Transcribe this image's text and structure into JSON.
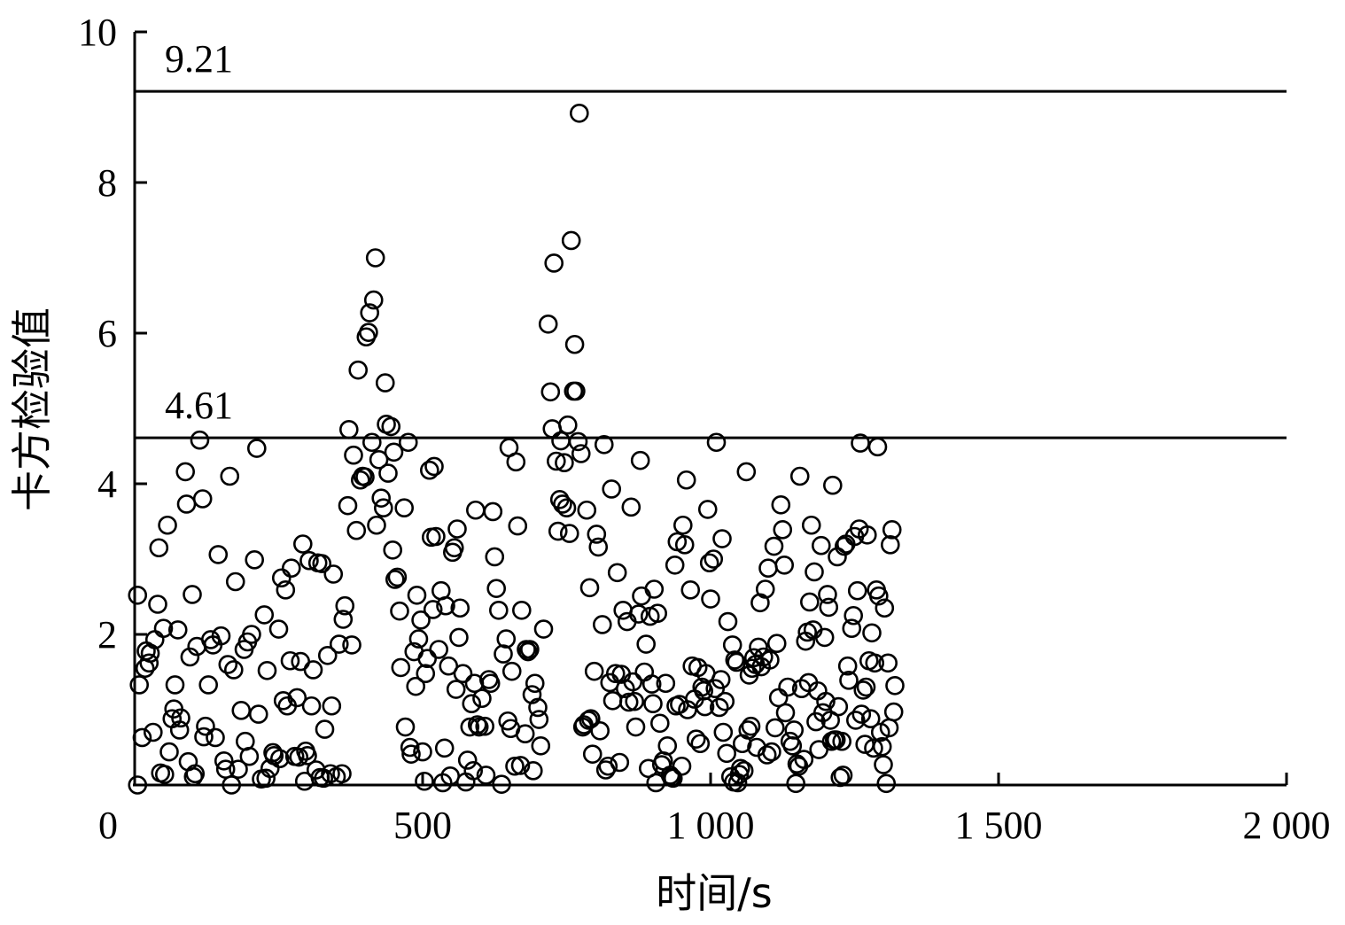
{
  "chart_data": {
    "type": "scatter",
    "xlabel": "时间/s",
    "ylabel": "卡方检验值",
    "xlim": [
      0,
      2000
    ],
    "ylim": [
      0,
      10
    ],
    "xticks": [
      {
        "value": 0,
        "label": "0"
      },
      {
        "value": 500,
        "label": "500"
      },
      {
        "value": 1000,
        "label": "1 000"
      },
      {
        "value": 1500,
        "label": "1 500"
      },
      {
        "value": 2000,
        "label": "2 000"
      }
    ],
    "yticks": [
      {
        "value": 2,
        "label": "2"
      },
      {
        "value": 4,
        "label": "4"
      },
      {
        "value": 6,
        "label": "6"
      },
      {
        "value": 8,
        "label": "8"
      },
      {
        "value": 10,
        "label": "10"
      }
    ],
    "reference_lines": [
      {
        "value": 9.21,
        "label": "9.21"
      },
      {
        "value": 4.61,
        "label": "4.61"
      }
    ],
    "marker": "open-circle",
    "grid": false,
    "points": [
      [
        5,
        2.52
      ],
      [
        5,
        0
      ],
      [
        8,
        1.33
      ],
      [
        13,
        0.63
      ],
      [
        18,
        1.55
      ],
      [
        20,
        1.78
      ],
      [
        25,
        1.62
      ],
      [
        27,
        1.75
      ],
      [
        32,
        0.7
      ],
      [
        35,
        1.93
      ],
      [
        40,
        2.4
      ],
      [
        42,
        3.15
      ],
      [
        45,
        0.16
      ],
      [
        50,
        2.08
      ],
      [
        52,
        0.14
      ],
      [
        57,
        3.45
      ],
      [
        60,
        0.44
      ],
      [
        65,
        0.88
      ],
      [
        68,
        1.01
      ],
      [
        70,
        1.33
      ],
      [
        75,
        2.06
      ],
      [
        78,
        0.73
      ],
      [
        80,
        0.89
      ],
      [
        88,
        4.16
      ],
      [
        90,
        3.73
      ],
      [
        93,
        0.31
      ],
      [
        96,
        1.7
      ],
      [
        100,
        2.53
      ],
      [
        102,
        0.11
      ],
      [
        105,
        0.15
      ],
      [
        108,
        1.84
      ],
      [
        113,
        4.58
      ],
      [
        118,
        3.8
      ],
      [
        120,
        0.64
      ],
      [
        123,
        0.78
      ],
      [
        128,
        1.33
      ],
      [
        132,
        1.93
      ],
      [
        136,
        1.86
      ],
      [
        140,
        0.63
      ],
      [
        145,
        3.06
      ],
      [
        150,
        1.98
      ],
      [
        155,
        0.32
      ],
      [
        158,
        0.21
      ],
      [
        162,
        1.6
      ],
      [
        165,
        4.1
      ],
      [
        168,
        0
      ],
      [
        172,
        1.53
      ],
      [
        175,
        2.7
      ],
      [
        180,
        0.21
      ],
      [
        185,
        0.99
      ],
      [
        190,
        1.8
      ],
      [
        192,
        0.58
      ],
      [
        196,
        1.9
      ],
      [
        199,
        0.38
      ],
      [
        203,
        2.0
      ],
      [
        208,
        2.99
      ],
      [
        212,
        4.47
      ],
      [
        215,
        0.94
      ],
      [
        220,
        0.08
      ],
      [
        225,
        2.26
      ],
      [
        228,
        0.09
      ],
      [
        230,
        1.52
      ],
      [
        235,
        0.22
      ],
      [
        240,
        0.43
      ],
      [
        242,
        0.39
      ],
      [
        250,
        2.07
      ],
      [
        252,
        0.35
      ],
      [
        255,
        2.75
      ],
      [
        258,
        1.12
      ],
      [
        262,
        2.59
      ],
      [
        265,
        1.05
      ],
      [
        270,
        1.65
      ],
      [
        272,
        2.88
      ],
      [
        278,
        0.38
      ],
      [
        282,
        1.16
      ],
      [
        285,
        0.37
      ],
      [
        288,
        1.64
      ],
      [
        292,
        3.2
      ],
      [
        295,
        0.05
      ],
      [
        297,
        0.45
      ],
      [
        300,
        0.39
      ],
      [
        303,
        2.98
      ],
      [
        307,
        1.05
      ],
      [
        310,
        1.53
      ],
      [
        315,
        0.2
      ],
      [
        318,
        2.95
      ],
      [
        322,
        0.1
      ],
      [
        325,
        2.94
      ],
      [
        328,
        0.09
      ],
      [
        330,
        0.74
      ],
      [
        335,
        1.72
      ],
      [
        340,
        0.15
      ],
      [
        342,
        1.05
      ],
      [
        345,
        2.8
      ],
      [
        350,
        0.11
      ],
      [
        355,
        1.87
      ],
      [
        360,
        0.15
      ],
      [
        362,
        2.2
      ],
      [
        365,
        2.38
      ],
      [
        370,
        3.71
      ],
      [
        372,
        4.72
      ],
      [
        377,
        1.86
      ],
      [
        380,
        4.38
      ],
      [
        385,
        3.38
      ],
      [
        388,
        5.51
      ],
      [
        392,
        4.05
      ],
      [
        396,
        4.1
      ],
      [
        400,
        4.09
      ],
      [
        402,
        5.95
      ],
      [
        406,
        6.01
      ],
      [
        408,
        6.27
      ],
      [
        412,
        4.55
      ],
      [
        415,
        6.44
      ],
      [
        418,
        7.0
      ],
      [
        420,
        3.45
      ],
      [
        424,
        4.32
      ],
      [
        428,
        3.81
      ],
      [
        432,
        3.68
      ],
      [
        435,
        5.34
      ],
      [
        437,
        4.79
      ],
      [
        440,
        4.14
      ],
      [
        445,
        4.76
      ],
      [
        448,
        3.12
      ],
      [
        450,
        4.42
      ],
      [
        452,
        2.73
      ],
      [
        456,
        2.76
      ],
      [
        460,
        2.31
      ],
      [
        462,
        1.56
      ],
      [
        468,
        3.68
      ],
      [
        470,
        0.77
      ],
      [
        475,
        4.55
      ],
      [
        478,
        0.5
      ],
      [
        480,
        0.41
      ],
      [
        485,
        1.77
      ],
      [
        488,
        1.31
      ],
      [
        490,
        2.52
      ],
      [
        493,
        1.94
      ],
      [
        497,
        2.19
      ],
      [
        500,
        0.44
      ],
      [
        503,
        0.05
      ],
      [
        505,
        1.48
      ],
      [
        508,
        1.68
      ],
      [
        512,
        4.18
      ],
      [
        515,
        3.29
      ],
      [
        518,
        2.33
      ],
      [
        520,
        4.23
      ],
      [
        523,
        3.3
      ],
      [
        528,
        1.8
      ],
      [
        532,
        2.58
      ],
      [
        535,
        0.03
      ],
      [
        538,
        0.49
      ],
      [
        540,
        2.38
      ],
      [
        545,
        1.58
      ],
      [
        548,
        0.12
      ],
      [
        552,
        3.09
      ],
      [
        555,
        3.15
      ],
      [
        558,
        1.27
      ],
      [
        560,
        3.4
      ],
      [
        563,
        1.96
      ],
      [
        565,
        2.35
      ],
      [
        570,
        1.48
      ],
      [
        575,
        0.04
      ],
      [
        578,
        0.33
      ],
      [
        582,
        0.77
      ],
      [
        585,
        1.08
      ],
      [
        588,
        0.19
      ],
      [
        590,
        1.35
      ],
      [
        592,
        3.65
      ],
      [
        595,
        0.8
      ],
      [
        598,
        0.77
      ],
      [
        603,
        1.15
      ],
      [
        608,
        0.78
      ],
      [
        610,
        0.13
      ],
      [
        615,
        1.4
      ],
      [
        618,
        1.35
      ],
      [
        622,
        3.63
      ],
      [
        625,
        3.03
      ],
      [
        628,
        2.61
      ],
      [
        632,
        2.32
      ],
      [
        637,
        0.01
      ],
      [
        640,
        1.74
      ],
      [
        645,
        1.94
      ],
      [
        648,
        0.85
      ],
      [
        650,
        4.48
      ],
      [
        653,
        0.75
      ],
      [
        655,
        1.51
      ],
      [
        660,
        0.25
      ],
      [
        662,
        4.29
      ],
      [
        665,
        3.44
      ],
      [
        670,
        0.26
      ],
      [
        672,
        2.32
      ],
      [
        678,
        0.68
      ],
      [
        680,
        1.8
      ],
      [
        683,
        1.77
      ],
      [
        686,
        1.8
      ],
      [
        690,
        1.2
      ],
      [
        692,
        0.19
      ],
      [
        695,
        1.35
      ],
      [
        700,
        1.03
      ],
      [
        702,
        0.87
      ],
      [
        705,
        0.52
      ],
      [
        710,
        2.07
      ],
      [
        718,
        6.12
      ],
      [
        722,
        5.22
      ],
      [
        725,
        4.73
      ],
      [
        728,
        6.93
      ],
      [
        732,
        4.3
      ],
      [
        735,
        3.37
      ],
      [
        738,
        3.79
      ],
      [
        740,
        4.57
      ],
      [
        743,
        3.73
      ],
      [
        746,
        4.28
      ],
      [
        750,
        3.68
      ],
      [
        752,
        4.78
      ],
      [
        755,
        3.34
      ],
      [
        758,
        7.23
      ],
      [
        762,
        5.23
      ],
      [
        764,
        5.85
      ],
      [
        766,
        5.23
      ],
      [
        770,
        4.56
      ],
      [
        772,
        8.92
      ],
      [
        775,
        4.4
      ],
      [
        778,
        0.77
      ],
      [
        780,
        0.8
      ],
      [
        785,
        3.65
      ],
      [
        788,
        0.86
      ],
      [
        790,
        2.62
      ],
      [
        792,
        0.88
      ],
      [
        795,
        0.41
      ],
      [
        798,
        1.51
      ],
      [
        802,
        3.33
      ],
      [
        805,
        3.16
      ],
      [
        808,
        0.72
      ],
      [
        812,
        2.13
      ],
      [
        815,
        4.52
      ],
      [
        818,
        0.2
      ],
      [
        822,
        0.25
      ],
      [
        825,
        1.36
      ],
      [
        828,
        3.93
      ],
      [
        830,
        1.12
      ],
      [
        835,
        1.48
      ],
      [
        838,
        2.82
      ],
      [
        842,
        0.3
      ],
      [
        845,
        1.47
      ],
      [
        848,
        2.32
      ],
      [
        852,
        1.28
      ],
      [
        855,
        2.17
      ],
      [
        858,
        1.1
      ],
      [
        862,
        3.69
      ],
      [
        865,
        1.37
      ],
      [
        868,
        1.11
      ],
      [
        870,
        0.77
      ],
      [
        875,
        2.27
      ],
      [
        878,
        4.31
      ],
      [
        880,
        2.51
      ],
      [
        885,
        1.5
      ],
      [
        888,
        1.87
      ],
      [
        892,
        0.22
      ],
      [
        895,
        2.24
      ],
      [
        898,
        1.34
      ],
      [
        900,
        1.08
      ],
      [
        902,
        2.6
      ],
      [
        905,
        0.03
      ],
      [
        908,
        2.28
      ],
      [
        912,
        0.82
      ],
      [
        915,
        0.27
      ],
      [
        918,
        0.32
      ],
      [
        922,
        1.35
      ],
      [
        925,
        0.52
      ],
      [
        930,
        0.13
      ],
      [
        932,
        0.1
      ],
      [
        935,
        0.09
      ],
      [
        938,
        2.92
      ],
      [
        940,
        1.05
      ],
      [
        942,
        3.23
      ],
      [
        946,
        1.07
      ],
      [
        950,
        0.25
      ],
      [
        952,
        3.45
      ],
      [
        955,
        3.19
      ],
      [
        958,
        4.05
      ],
      [
        960,
        1.0
      ],
      [
        965,
        2.59
      ],
      [
        968,
        1.58
      ],
      [
        972,
        1.14
      ],
      [
        975,
        0.61
      ],
      [
        978,
        1.56
      ],
      [
        982,
        0.55
      ],
      [
        985,
        1.3
      ],
      [
        988,
        1.25
      ],
      [
        990,
        1.04
      ],
      [
        992,
        1.48
      ],
      [
        995,
        3.66
      ],
      [
        998,
        2.95
      ],
      [
        1000,
        2.47
      ],
      [
        1005,
        3.0
      ],
      [
        1008,
        1.28
      ],
      [
        1010,
        4.55
      ],
      [
        1015,
        1.03
      ],
      [
        1018,
        1.4
      ],
      [
        1020,
        3.27
      ],
      [
        1022,
        0.7
      ],
      [
        1025,
        1.11
      ],
      [
        1028,
        0.42
      ],
      [
        1030,
        2.17
      ],
      [
        1035,
        0.11
      ],
      [
        1038,
        1.86
      ],
      [
        1040,
        0.04
      ],
      [
        1042,
        1.66
      ],
      [
        1045,
        1.63
      ],
      [
        1047,
        0.03
      ],
      [
        1050,
        0.14
      ],
      [
        1052,
        0.22
      ],
      [
        1055,
        0.55
      ],
      [
        1058,
        0.19
      ],
      [
        1062,
        4.16
      ],
      [
        1065,
        0.73
      ],
      [
        1067,
        1.46
      ],
      [
        1070,
        0.78
      ],
      [
        1072,
        1.55
      ],
      [
        1075,
        1.69
      ],
      [
        1078,
        1.6
      ],
      [
        1080,
        0.5
      ],
      [
        1083,
        1.83
      ],
      [
        1086,
        2.42
      ],
      [
        1088,
        1.57
      ],
      [
        1092,
        1.7
      ],
      [
        1095,
        2.6
      ],
      [
        1098,
        0.4
      ],
      [
        1100,
        2.88
      ],
      [
        1103,
        1.66
      ],
      [
        1106,
        0.44
      ],
      [
        1110,
        3.17
      ],
      [
        1112,
        0.76
      ],
      [
        1115,
        1.88
      ],
      [
        1118,
        1.16
      ],
      [
        1122,
        3.72
      ],
      [
        1125,
        3.39
      ],
      [
        1128,
        2.92
      ],
      [
        1130,
        0.96
      ],
      [
        1134,
        1.3
      ],
      [
        1138,
        0.58
      ],
      [
        1142,
        0.52
      ],
      [
        1145,
        0.73
      ],
      [
        1148,
        0.02
      ],
      [
        1150,
        0.28
      ],
      [
        1153,
        0.25
      ],
      [
        1155,
        4.1
      ],
      [
        1158,
        1.28
      ],
      [
        1162,
        0.34
      ],
      [
        1165,
        1.91
      ],
      [
        1168,
        2.03
      ],
      [
        1170,
        1.36
      ],
      [
        1172,
        2.43
      ],
      [
        1175,
        3.45
      ],
      [
        1178,
        2.06
      ],
      [
        1180,
        2.83
      ],
      [
        1183,
        0.84
      ],
      [
        1186,
        1.25
      ],
      [
        1188,
        0.47
      ],
      [
        1192,
        3.18
      ],
      [
        1195,
        0.96
      ],
      [
        1198,
        1.96
      ],
      [
        1200,
        1.11
      ],
      [
        1203,
        2.53
      ],
      [
        1205,
        2.36
      ],
      [
        1208,
        0.86
      ],
      [
        1210,
        0.58
      ],
      [
        1212,
        3.98
      ],
      [
        1215,
        0.6
      ],
      [
        1218,
        0.6
      ],
      [
        1220,
        3.03
      ],
      [
        1222,
        1.04
      ],
      [
        1225,
        0.1
      ],
      [
        1228,
        0.58
      ],
      [
        1230,
        0.13
      ],
      [
        1232,
        3.17
      ],
      [
        1235,
        3.2
      ],
      [
        1238,
        1.58
      ],
      [
        1240,
        1.39
      ],
      [
        1245,
        2.08
      ],
      [
        1248,
        2.25
      ],
      [
        1250,
        3.3
      ],
      [
        1252,
        0.86
      ],
      [
        1255,
        2.58
      ],
      [
        1258,
        3.4
      ],
      [
        1260,
        4.54
      ],
      [
        1262,
        0.94
      ],
      [
        1265,
        1.26
      ],
      [
        1268,
        0.54
      ],
      [
        1270,
        1.3
      ],
      [
        1272,
        3.32
      ],
      [
        1275,
        1.65
      ],
      [
        1278,
        0.88
      ],
      [
        1280,
        2.02
      ],
      [
        1283,
        0.49
      ],
      [
        1285,
        1.62
      ],
      [
        1288,
        2.59
      ],
      [
        1290,
        4.49
      ],
      [
        1292,
        2.51
      ],
      [
        1295,
        0.7
      ],
      [
        1298,
        0.51
      ],
      [
        1300,
        0.27
      ],
      [
        1302,
        2.35
      ],
      [
        1305,
        0.02
      ],
      [
        1308,
        1.62
      ],
      [
        1310,
        0.76
      ],
      [
        1312,
        3.19
      ],
      [
        1315,
        3.39
      ],
      [
        1318,
        0.97
      ],
      [
        1320,
        1.32
      ]
    ]
  }
}
